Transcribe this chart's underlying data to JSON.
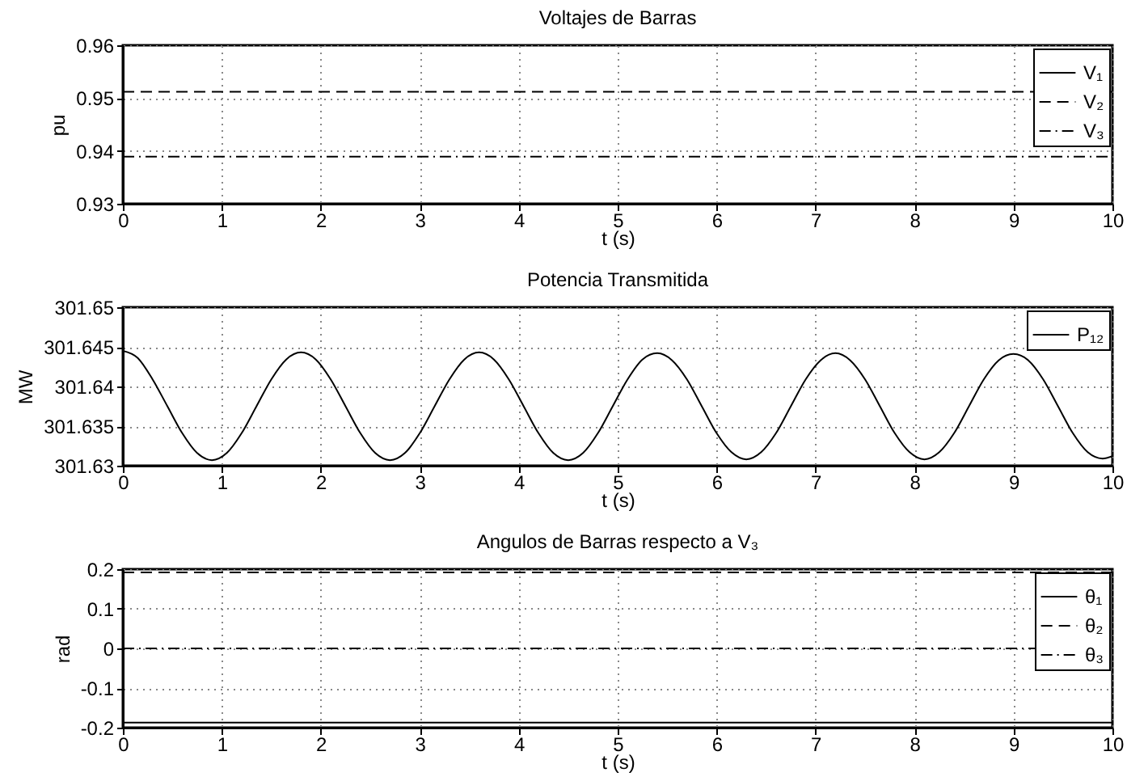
{
  "chart_data": [
    {
      "type": "line",
      "title": "Voltajes de Barras",
      "xlabel": "t (s)",
      "ylabel": "pu",
      "x": [
        0,
        10
      ],
      "xlim": [
        0,
        10
      ],
      "xticks": [
        0,
        1,
        2,
        3,
        4,
        5,
        6,
        7,
        8,
        9,
        10
      ],
      "ylim": [
        0.93,
        0.96
      ],
      "yticks": [
        0.93,
        0.94,
        0.95,
        0.96
      ],
      "grid": true,
      "legend": "top right",
      "series": [
        {
          "name": "V₁",
          "color": "#000000",
          "line_style": "solid",
          "values": [
            null,
            null
          ]
        },
        {
          "name": "V₂",
          "color": "#000000",
          "line_style": "dashed",
          "values": [
            0.9512,
            0.9512
          ]
        },
        {
          "name": "V₃",
          "color": "#000000",
          "line_style": "dashdot",
          "values": [
            0.9389,
            0.9389
          ]
        }
      ]
    },
    {
      "type": "line",
      "title": "Potencia Transmitida",
      "xlabel": "t (s)",
      "ylabel": "MW",
      "x": [
        0,
        0.15,
        0.3,
        0.45,
        0.6,
        0.75,
        0.9,
        1.05,
        1.2,
        1.35,
        1.5,
        1.65,
        1.8,
        1.95,
        2.1,
        2.25,
        2.4,
        2.55,
        2.7,
        2.85,
        3,
        3.15,
        3.3,
        3.45,
        3.6,
        3.75,
        3.9,
        4.05,
        4.2,
        4.35,
        4.5,
        4.65,
        4.8,
        4.95,
        5.1,
        5.25,
        5.4,
        5.55,
        5.7,
        5.85,
        6,
        6.15,
        6.3,
        6.45,
        6.6,
        6.75,
        6.9,
        7.05,
        7.2,
        7.35,
        7.5,
        7.65,
        7.8,
        7.95,
        8.1,
        8.25,
        8.4,
        8.55,
        8.7,
        8.85,
        9,
        9.15,
        9.3,
        9.45,
        9.6,
        9.75,
        9.9,
        10
      ],
      "xlim": [
        0,
        10
      ],
      "xticks": [
        0,
        1,
        2,
        3,
        4,
        5,
        6,
        7,
        8,
        9,
        10
      ],
      "ylim": [
        301.63,
        301.65
      ],
      "yticks": [
        301.63,
        301.635,
        301.64,
        301.645,
        301.65
      ],
      "grid": true,
      "legend": "top right",
      "series": [
        {
          "name": "P₁₂",
          "color": "#000000",
          "line_style": "solid",
          "values": [
            301.6445,
            301.6436,
            301.6409,
            301.6375,
            301.6341,
            301.6316,
            301.6307,
            301.6316,
            301.6341,
            301.6375,
            301.6409,
            301.6434,
            301.6443,
            301.6434,
            301.6409,
            301.6375,
            301.6341,
            301.6316,
            301.6307,
            301.6316,
            301.6341,
            301.6375,
            301.6409,
            301.6434,
            301.6443,
            301.6434,
            301.6409,
            301.6375,
            301.6341,
            301.6316,
            301.6307,
            301.6316,
            301.6341,
            301.6375,
            301.6409,
            301.6434,
            301.6442,
            301.6433,
            301.6409,
            301.6375,
            301.6341,
            301.6317,
            301.6308,
            301.6317,
            301.6341,
            301.6375,
            301.6409,
            301.6433,
            301.6442,
            301.6433,
            301.6409,
            301.6375,
            301.6341,
            301.6317,
            301.6308,
            301.6317,
            301.6341,
            301.6375,
            301.6409,
            301.6433,
            301.6441,
            301.6433,
            301.6409,
            301.6375,
            301.6341,
            301.6317,
            301.6309,
            301.6312
          ]
        }
      ]
    },
    {
      "type": "line",
      "title": "Angulos de Barras respecto a V₃",
      "xlabel": "t (s)",
      "ylabel": "rad",
      "x": [
        0,
        10
      ],
      "xlim": [
        0,
        10
      ],
      "xticks": [
        0,
        1,
        2,
        3,
        4,
        5,
        6,
        7,
        8,
        9,
        10
      ],
      "ylim": [
        -0.2,
        0.2
      ],
      "yticks": [
        -0.2,
        -0.1,
        0,
        0.1,
        0.2
      ],
      "grid": true,
      "legend": "top right",
      "series": [
        {
          "name": "θ₁",
          "color": "#000000",
          "line_style": "solid",
          "values": [
            -0.187,
            -0.187
          ]
        },
        {
          "name": "θ₂",
          "color": "#000000",
          "line_style": "dashed",
          "values": [
            0.192,
            0.192
          ]
        },
        {
          "name": "θ₃",
          "color": "#000000",
          "line_style": "dashdot",
          "values": [
            0,
            0
          ]
        }
      ]
    }
  ]
}
